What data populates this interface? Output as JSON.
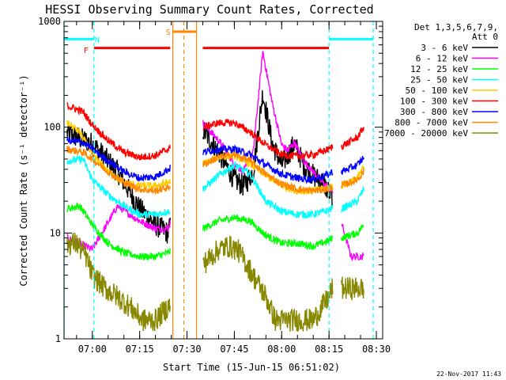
{
  "chart_data": {
    "type": "line",
    "title": "HESSI Observing Summary Count Rates, Corrected",
    "xlabel": "Start Time (15-Jun-15 06:51:02)",
    "ylabel": "Corrected Count Rate (s⁻¹ detector⁻¹)",
    "yscale": "log",
    "ylim": [
      1,
      1000
    ],
    "xlim": [
      "06:51:02",
      "08:32:00"
    ],
    "yticks": [
      1,
      10,
      100,
      1000
    ],
    "ytick_labels": [
      "1",
      "10",
      "100",
      "1000"
    ],
    "xticks": [
      "07:00",
      "07:15",
      "07:30",
      "07:45",
      "08:00",
      "08:15",
      "08:30"
    ],
    "legend_header": [
      "Det 1,3,5,6,7,9,",
      "Att 0"
    ],
    "legend_position": "right",
    "timestamp": "22-Nov-2017 11:43",
    "gaps": [
      [
        "07:24:40",
        "07:35:00"
      ],
      [
        "08:16:10",
        "08:18:50"
      ]
    ],
    "series": [
      {
        "name": "3 - 6 keV",
        "color": "#000000",
        "x": [
          "06:52",
          "07:00",
          "07:08",
          "07:15",
          "07:20",
          "07:24",
          "07:35",
          "07:40",
          "07:45",
          "07:48",
          "07:51",
          "07:54",
          "07:57",
          "08:00",
          "08:02",
          "08:04",
          "08:07",
          "08:10",
          "08:13",
          "08:16"
        ],
        "y": [
          88,
          70,
          38,
          17,
          12,
          10,
          95,
          58,
          32,
          28,
          38,
          210,
          70,
          44,
          55,
          70,
          44,
          35,
          30,
          22
        ]
      },
      {
        "name": "6 - 12 keV",
        "color": "#ff00ff",
        "x": [
          "06:52",
          "07:00",
          "07:08",
          "07:15",
          "07:20",
          "07:24",
          "07:35",
          "07:40",
          "07:45",
          "07:48",
          "07:51",
          "07:54",
          "07:57",
          "08:00",
          "08:02",
          "08:04",
          "08:07",
          "08:10",
          "08:13",
          "08:16",
          "08:22",
          "08:26"
        ],
        "y": [
          9,
          7,
          18,
          13,
          11,
          11,
          110,
          75,
          45,
          38,
          58,
          520,
          170,
          68,
          60,
          72,
          48,
          38,
          30,
          25,
          6,
          6
        ]
      },
      {
        "name": "12 - 25 keV",
        "color": "#00ff00",
        "x": [
          "06:52",
          "06:56",
          "07:00",
          "07:05",
          "07:10",
          "07:15",
          "07:20",
          "07:24",
          "07:35",
          "07:40",
          "07:45",
          "07:50",
          "07:55",
          "08:00",
          "08:05",
          "08:10",
          "08:15",
          "08:16",
          "08:19",
          "08:24",
          "08:26"
        ],
        "y": [
          17,
          18,
          12,
          8,
          6.5,
          6,
          6,
          6.5,
          11,
          13,
          14,
          13,
          9.5,
          8,
          8,
          7.5,
          8.5,
          9,
          9,
          10,
          12
        ]
      },
      {
        "name": "25 - 50 keV",
        "color": "#00ffff",
        "x": [
          "06:52",
          "06:57",
          "07:00",
          "07:05",
          "07:10",
          "07:15",
          "07:20",
          "07:24",
          "07:35",
          "07:40",
          "07:45",
          "07:50",
          "07:55",
          "08:00",
          "08:05",
          "08:10",
          "08:15",
          "08:16",
          "08:19",
          "08:24",
          "08:26"
        ],
        "y": [
          48,
          50,
          32,
          23,
          18,
          15,
          15,
          16,
          26,
          35,
          44,
          36,
          20,
          16,
          15,
          15,
          16.5,
          17,
          17,
          20,
          26
        ]
      },
      {
        "name": "50 - 100 keV",
        "color": "#ffcc00",
        "x": [
          "06:52",
          "06:56",
          "07:00",
          "07:05",
          "07:10",
          "07:15",
          "07:20",
          "07:24",
          "07:35",
          "07:40",
          "07:45",
          "07:50",
          "07:55",
          "08:00",
          "08:05",
          "08:10",
          "08:15",
          "08:16",
          "08:19",
          "08:24",
          "08:26"
        ],
        "y": [
          110,
          90,
          55,
          38,
          30,
          28,
          28,
          30,
          45,
          52,
          54,
          45,
          35,
          28,
          25,
          25,
          27,
          28,
          28,
          33,
          42
        ]
      },
      {
        "name": "100 - 300 keV",
        "color": "#ff0000",
        "x": [
          "06:52",
          "06:57",
          "07:00",
          "07:05",
          "07:10",
          "07:15",
          "07:20",
          "07:24",
          "07:35",
          "07:40",
          "07:45",
          "07:50",
          "07:55",
          "08:00",
          "08:05",
          "08:10",
          "08:15",
          "08:16",
          "08:19",
          "08:24",
          "08:26"
        ],
        "y": [
          160,
          140,
          105,
          75,
          58,
          52,
          54,
          62,
          100,
          110,
          110,
          90,
          68,
          55,
          53,
          55,
          62,
          65,
          66,
          80,
          100
        ]
      },
      {
        "name": "300 - 800 keV",
        "color": "#0000ff",
        "x": [
          "06:52",
          "06:57",
          "07:00",
          "07:05",
          "07:10",
          "07:15",
          "07:20",
          "07:24",
          "07:35",
          "07:40",
          "07:45",
          "07:50",
          "07:55",
          "08:00",
          "08:05",
          "08:10",
          "08:15",
          "08:16",
          "08:19",
          "08:24",
          "08:26"
        ],
        "y": [
          75,
          72,
          62,
          48,
          38,
          33,
          34,
          40,
          58,
          62,
          62,
          55,
          44,
          36,
          33,
          32,
          36,
          38,
          38,
          44,
          52
        ]
      },
      {
        "name": "800 - 7000 keV",
        "color": "#ff8800",
        "x": [
          "06:52",
          "06:57",
          "07:00",
          "07:05",
          "07:10",
          "07:15",
          "07:20",
          "07:24",
          "07:35",
          "07:40",
          "07:45",
          "07:50",
          "07:55",
          "08:00",
          "08:05",
          "08:10",
          "08:15",
          "08:16",
          "08:19",
          "08:24",
          "08:26"
        ],
        "y": [
          62,
          58,
          50,
          38,
          30,
          26,
          25,
          27,
          44,
          52,
          55,
          48,
          36,
          29,
          26,
          25,
          26,
          27,
          28,
          32,
          38
        ]
      },
      {
        "name": "7000 - 20000 keV",
        "color": "#888800",
        "x": [
          "06:52",
          "06:55",
          "06:58",
          "07:00",
          "07:04",
          "07:08",
          "07:12",
          "07:16",
          "07:20",
          "07:24",
          "07:35",
          "07:40",
          "07:43",
          "07:46",
          "07:49",
          "07:52",
          "07:55",
          "07:58",
          "08:02",
          "08:06",
          "08:10",
          "08:15",
          "08:16",
          "08:19",
          "08:22",
          "08:26"
        ],
        "y": [
          8,
          8,
          6,
          4,
          3,
          2.5,
          2,
          1.5,
          1.5,
          2,
          5,
          7,
          7.5,
          7,
          5,
          3.5,
          2.5,
          1.5,
          1.5,
          1.5,
          1.5,
          2.5,
          3,
          3,
          3,
          3
        ]
      }
    ],
    "annotations": [
      {
        "text": "F",
        "color": "#ff0000",
        "start": "07:00:30",
        "end": "07:24:40",
        "level": 560
      },
      {
        "text": "F",
        "color": "#ff0000",
        "start": "07:35:00",
        "end": "08:15:00",
        "level": 560
      },
      {
        "text": "N",
        "color": "#00ffff",
        "start": "06:51:02",
        "end": "07:00:30",
        "level": 680
      },
      {
        "text": "N",
        "color": "#00ffff",
        "start": "08:15:00",
        "end": "08:29:00",
        "level": 680
      },
      {
        "text": "S",
        "color": "#ff8800",
        "start": "07:25:30",
        "end": "07:33:00",
        "level": 800
      }
    ],
    "marker_labels": {
      "F": {
        "text": "F",
        "color": "#ff0000",
        "at": "06:58:00",
        "level": 540
      },
      "N": {
        "text": "N",
        "color": "#00ffff",
        "at": "07:01:30",
        "level": 680
      },
      "S": {
        "text": "S",
        "color": "#ff8800",
        "at": "07:24:00",
        "level": 800
      }
    },
    "vlines": [
      {
        "at": "07:00:30",
        "color": "#00ffff",
        "style": "dashed"
      },
      {
        "at": "08:15:00",
        "color": "#00ffff",
        "style": "dashed"
      },
      {
        "at": "08:29:00",
        "color": "#00ffff",
        "style": "dashed"
      },
      {
        "at": "07:25:30",
        "color": "#ff8800",
        "style": "solid"
      },
      {
        "at": "07:29:00",
        "color": "#ff8800",
        "style": "dashed"
      },
      {
        "at": "07:33:00",
        "color": "#ff8800",
        "style": "solid"
      },
      {
        "at": "06:51:02",
        "color": "#00ffff",
        "style": "solid"
      }
    ]
  }
}
